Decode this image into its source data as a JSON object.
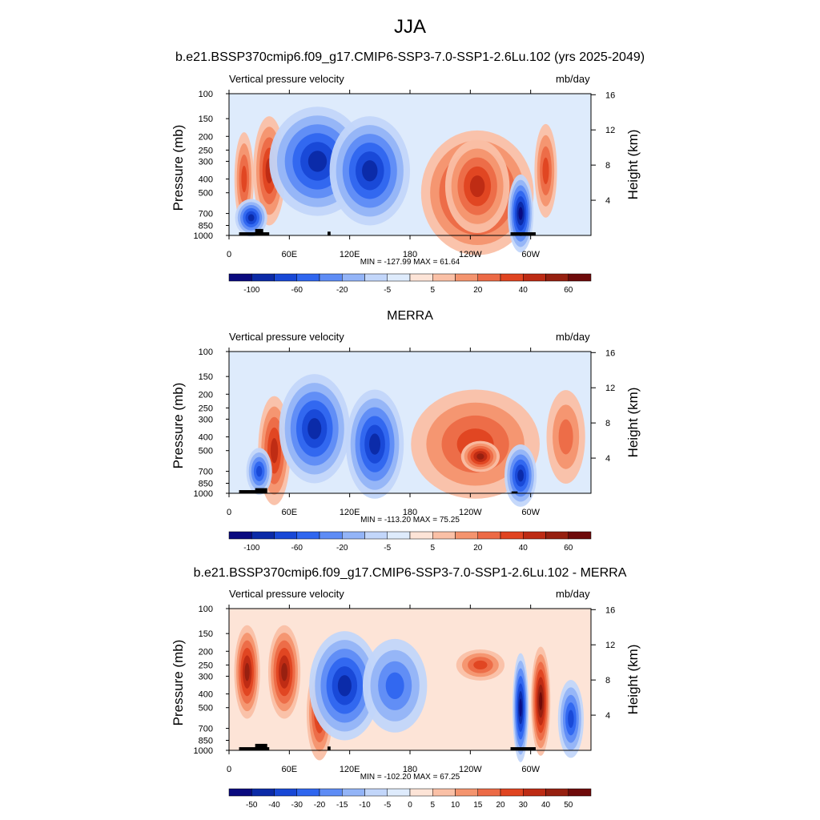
{
  "main_title": "JJA",
  "colors": {
    "blue": [
      "#0a0a7f",
      "#0b2aa7",
      "#1848d6",
      "#2f66ef",
      "#5e8cf5",
      "#93b4f7",
      "#c2d6fa",
      "#deebfc"
    ],
    "red": [
      "#fde4d7",
      "#fac0a6",
      "#f4946e",
      "#ec6a46",
      "#e04421",
      "#bd2b14",
      "#962010",
      "#6e0a0a"
    ]
  },
  "panels": [
    {
      "title": "b.e21.BSSP370cmip6.f09_g17.CMIP6-SSP3-7.0-SSP1-2.6Lu.102 (yrs 2025-2049)",
      "variable": "Vertical pressure velocity",
      "units": "mb/day",
      "minmax": "MIN = -127.99  MAX =  61.64",
      "colorbar_labels": [
        "-100",
        "-60",
        "-20",
        "-5",
        "5",
        "20",
        "40",
        "60"
      ]
    },
    {
      "title": "MERRA",
      "variable": "Vertical pressure velocity",
      "units": "mb/day",
      "minmax": "MIN = -113.20  MAX =  75.25",
      "colorbar_labels": [
        "-100",
        "-60",
        "-20",
        "-5",
        "5",
        "20",
        "40",
        "60"
      ]
    },
    {
      "title": "b.e21.BSSP370cmip6.f09_g17.CMIP6-SSP3-7.0-SSP1-2.6Lu.102 - MERRA",
      "variable": "Vertical pressure velocity",
      "units": "mb/day",
      "minmax": "MIN = -102.20  MAX =  67.25",
      "colorbar_labels": [
        "-50",
        "-40",
        "-30",
        "-20",
        "-15",
        "-10",
        "-5",
        "0",
        "5",
        "10",
        "15",
        "20",
        "30",
        "40",
        "50"
      ]
    }
  ],
  "chart_data": [
    {
      "type": "heatmap",
      "title": "b.e21.BSSP370cmip6.f09_g17.CMIP6-SSP3-7.0-SSP1-2.6Lu.102 (yrs 2025-2049)",
      "ylabel": "Pressure (mb)",
      "ylabel_right": "Height (km)",
      "x_ticks": [
        "0",
        "60E",
        "120E",
        "180",
        "120W",
        "60W"
      ],
      "y_ticks": [
        "100",
        "150",
        "200",
        "250",
        "300",
        "400",
        "500",
        "700",
        "850",
        "1000"
      ],
      "y_ticks_right": [
        "4",
        "8",
        "12",
        "16"
      ],
      "min": -127.99,
      "max": 61.64,
      "legend": "bottom"
    },
    {
      "type": "heatmap",
      "title": "MERRA",
      "ylabel": "Pressure (mb)",
      "ylabel_right": "Height (km)",
      "x_ticks": [
        "0",
        "60E",
        "120E",
        "180",
        "120W",
        "60W"
      ],
      "y_ticks": [
        "100",
        "150",
        "200",
        "250",
        "300",
        "400",
        "500",
        "700",
        "850",
        "1000"
      ],
      "y_ticks_right": [
        "4",
        "8",
        "12",
        "16"
      ],
      "min": -113.2,
      "max": 75.25,
      "legend": "bottom"
    },
    {
      "type": "heatmap",
      "title": "b.e21.BSSP370cmip6.f09_g17.CMIP6-SSP3-7.0-SSP1-2.6Lu.102 - MERRA",
      "ylabel": "Pressure (mb)",
      "ylabel_right": "Height (km)",
      "x_ticks": [
        "0",
        "60E",
        "120E",
        "180",
        "120W",
        "60W"
      ],
      "y_ticks": [
        "100",
        "150",
        "200",
        "250",
        "300",
        "400",
        "500",
        "700",
        "850",
        "1000"
      ],
      "y_ticks_right": [
        "4",
        "8",
        "12",
        "16"
      ],
      "min": -102.2,
      "max": 67.25,
      "legend": "bottom"
    }
  ]
}
